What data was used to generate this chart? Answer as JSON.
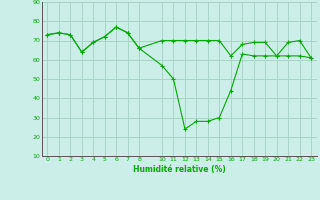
{
  "xlabel": "Humidité relative (%)",
  "background_color": "#cceee8",
  "grid_color": "#aad4c8",
  "line_color": "#00aa00",
  "ylim": [
    10,
    90
  ],
  "xlim": [
    -0.5,
    23.5
  ],
  "yticks": [
    10,
    20,
    30,
    40,
    50,
    60,
    70,
    80,
    90
  ],
  "xtick_positions": [
    0,
    1,
    2,
    3,
    4,
    5,
    6,
    7,
    8,
    10,
    11,
    12,
    13,
    14,
    15,
    16,
    17,
    18,
    19,
    20,
    21,
    22,
    23
  ],
  "xtick_labels": [
    "0",
    "1",
    "2",
    "3",
    "4",
    "5",
    "6",
    "7",
    "8",
    "10",
    "11",
    "12",
    "13",
    "14",
    "15",
    "16",
    "17",
    "18",
    "19",
    "20",
    "21",
    "22",
    "23"
  ],
  "line1_x": [
    0,
    1,
    2,
    3,
    4,
    5,
    6,
    7,
    8,
    10,
    11,
    12,
    13,
    14,
    15,
    16,
    17,
    18,
    19,
    20,
    21,
    22,
    23
  ],
  "line1_y": [
    73,
    74,
    73,
    64,
    69,
    72,
    77,
    74,
    66,
    70,
    70,
    70,
    70,
    70,
    70,
    62,
    68,
    69,
    69,
    62,
    69,
    70,
    61
  ],
  "line2_x": [
    0,
    1,
    2,
    3,
    4,
    5,
    6,
    7,
    8,
    10,
    11,
    12,
    13,
    14,
    15,
    16,
    17,
    18,
    19,
    20,
    21,
    22,
    23
  ],
  "line2_y": [
    73,
    74,
    73,
    64,
    69,
    72,
    77,
    74,
    66,
    57,
    50,
    24,
    28,
    28,
    30,
    44,
    63,
    62,
    62,
    62,
    62,
    62,
    61
  ]
}
